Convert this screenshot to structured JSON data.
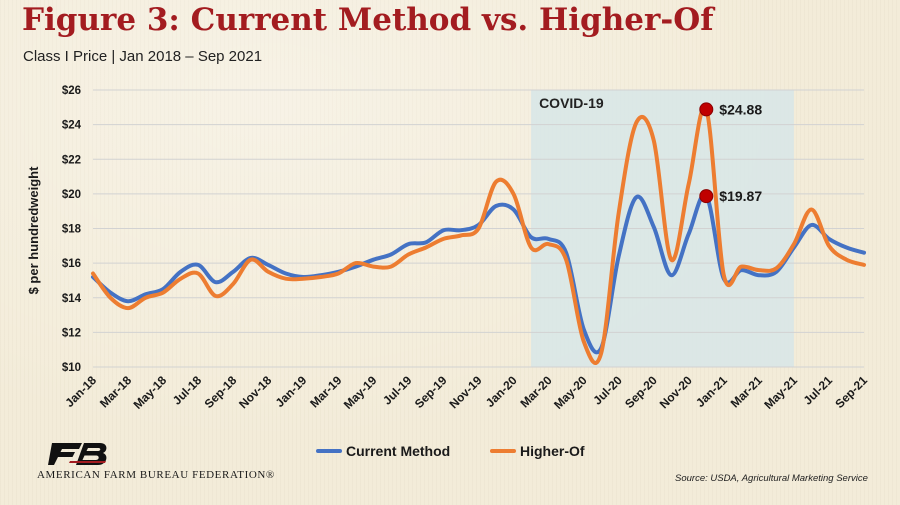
{
  "header": {
    "title": "Figure 3: Current Method vs. Higher-Of",
    "subtitle": "Class I Price | Jan 2018 – Sep 2021"
  },
  "footer": {
    "org_name": "AMERICAN FARM BUREAU FEDERATION®",
    "source": "Source: USDA, Agricultural Marketing Service",
    "logo_icon": "fb-logo-icon"
  },
  "colors": {
    "current_method": "#4472c4",
    "higher_of": "#ed7d31",
    "marker": "#c00000",
    "covid_band": "#d7e6e8"
  },
  "chart_data": {
    "type": "line",
    "ylabel": "$ per hundredweight",
    "ylim": [
      10,
      26
    ],
    "yticks": [
      10,
      12,
      14,
      16,
      18,
      20,
      22,
      24,
      26
    ],
    "ytick_labels": [
      "$10",
      "$12",
      "$14",
      "$16",
      "$18",
      "$20",
      "$22",
      "$24",
      "$26"
    ],
    "grid": "horizontal",
    "legend": "bottom-center",
    "x": [
      "Jan-18",
      "Feb-18",
      "Mar-18",
      "Apr-18",
      "May-18",
      "Jun-18",
      "Jul-18",
      "Aug-18",
      "Sep-18",
      "Oct-18",
      "Nov-18",
      "Dec-18",
      "Jan-19",
      "Feb-19",
      "Mar-19",
      "Apr-19",
      "May-19",
      "Jun-19",
      "Jul-19",
      "Aug-19",
      "Sep-19",
      "Oct-19",
      "Nov-19",
      "Dec-19",
      "Jan-20",
      "Feb-20",
      "Mar-20",
      "Apr-20",
      "May-20",
      "Jun-20",
      "Jul-20",
      "Aug-20",
      "Sep-20",
      "Oct-20",
      "Nov-20",
      "Dec-20",
      "Jan-21",
      "Feb-21",
      "Mar-21",
      "Apr-21",
      "May-21",
      "Jun-21",
      "Jul-21",
      "Aug-21",
      "Sep-21"
    ],
    "xtick_labels": [
      "Jan-18",
      "Mar-18",
      "May-18",
      "Jul-18",
      "Sep-18",
      "Nov-18",
      "Jan-19",
      "Mar-19",
      "May-19",
      "Jul-19",
      "Sep-19",
      "Nov-19",
      "Jan-20",
      "Mar-20",
      "May-20",
      "Jul-20",
      "Sep-20",
      "Nov-20",
      "Jan-21",
      "Mar-21",
      "May-21",
      "Jul-21",
      "Sep-21"
    ],
    "series": [
      {
        "name": "Current Method",
        "values": [
          15.2,
          14.3,
          13.8,
          14.2,
          14.5,
          15.5,
          15.9,
          14.9,
          15.5,
          16.3,
          15.9,
          15.4,
          15.2,
          15.3,
          15.5,
          15.8,
          16.2,
          16.5,
          17.1,
          17.2,
          17.9,
          17.9,
          18.2,
          19.3,
          19.1,
          17.5,
          17.4,
          16.6,
          12.2,
          11.1,
          16.4,
          19.8,
          18.1,
          15.3,
          17.7,
          19.9,
          15.1,
          15.6,
          15.3,
          15.5,
          16.9,
          18.2,
          17.4,
          16.9,
          16.6
        ]
      },
      {
        "name": "Higher-Of",
        "values": [
          15.4,
          14.0,
          13.4,
          14.0,
          14.3,
          15.1,
          15.4,
          14.1,
          14.8,
          16.2,
          15.5,
          15.1,
          15.1,
          15.2,
          15.4,
          16.0,
          15.8,
          15.8,
          16.5,
          16.9,
          17.4,
          17.6,
          18.0,
          20.7,
          20.0,
          16.9,
          17.1,
          16.2,
          11.5,
          10.8,
          18.9,
          24.1,
          23.1,
          16.2,
          20.6,
          24.88,
          15.3,
          15.8,
          15.6,
          15.7,
          17.1,
          19.1,
          17.0,
          16.2,
          15.9
        ]
      }
    ],
    "shaded_region": {
      "label": "COVID-19",
      "from": "Feb-20",
      "to": "May-21"
    },
    "annotations": [
      {
        "series": "Higher-Of",
        "x": "Dec-20",
        "y": 24.88,
        "label": "$24.88"
      },
      {
        "series": "Current Method",
        "x": "Dec-20",
        "y": 19.87,
        "label": "$19.87"
      }
    ]
  }
}
